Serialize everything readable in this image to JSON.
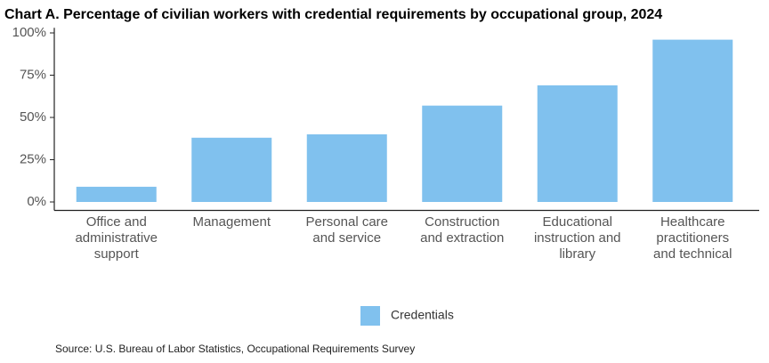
{
  "chart_data": {
    "type": "bar",
    "title": "Chart A. Percentage of civilian workers with credential requirements by occupational group,  2024",
    "categories": [
      "Office and administrative support",
      "Management",
      "Personal care and service",
      "Construction and extraction",
      "Educational instruction and library",
      "Healthcare practitioners and technical"
    ],
    "series": [
      {
        "name": "Credentials",
        "color": "#80c1ee",
        "values": [
          9,
          38,
          40,
          57,
          69,
          96
        ]
      }
    ],
    "ylim": [
      -5,
      103
    ],
    "yticks": [
      {
        "value": 0,
        "label": "0%"
      },
      {
        "value": 25,
        "label": "25%"
      },
      {
        "value": 50,
        "label": "50%"
      },
      {
        "value": 75,
        "label": "75%"
      },
      {
        "value": 100,
        "label": "100%"
      }
    ],
    "source": "Source: U.S. Bureau of Labor Statistics, Occupational Requirements Survey"
  }
}
